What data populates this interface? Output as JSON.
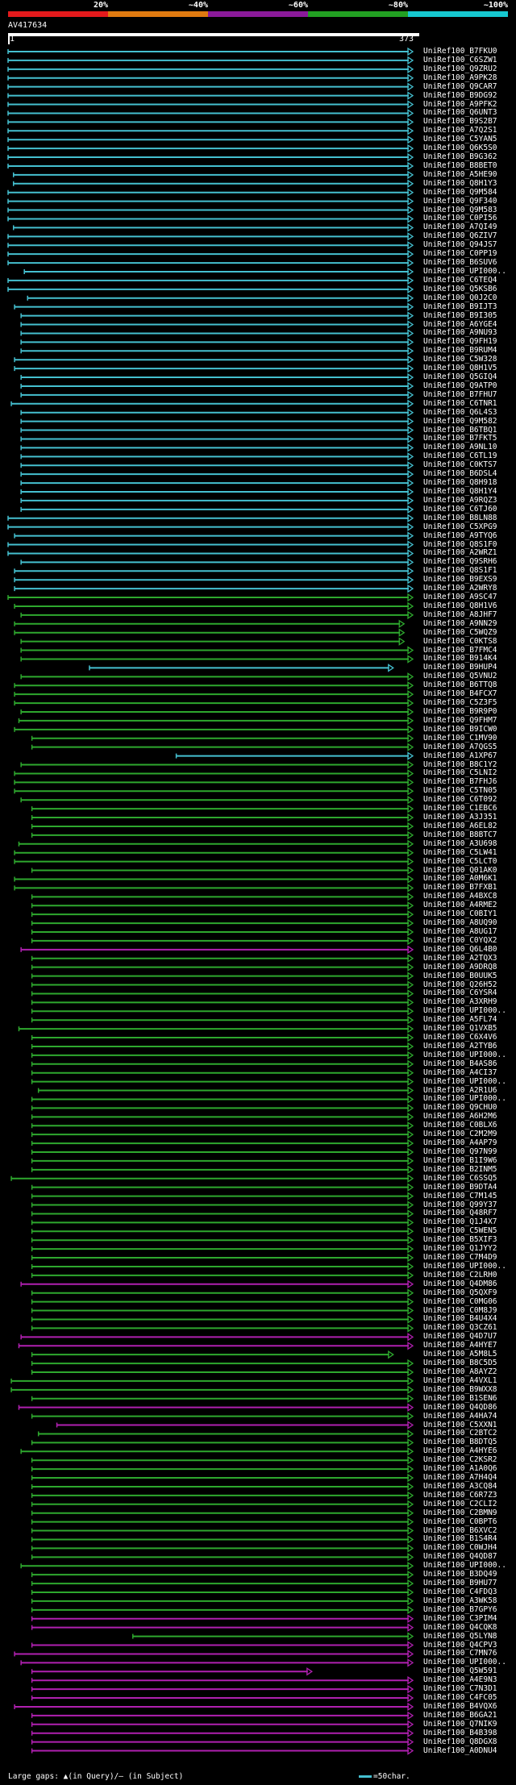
{
  "legend": {
    "labels": [
      "20%",
      "~40%",
      "~60%",
      "~80%",
      "~100%"
    ],
    "colors": [
      "#e41a1c",
      "#e07a10",
      "#8b1a9a",
      "#22a022",
      "#16c8d0"
    ]
  },
  "query": {
    "title": "AV417634",
    "start": "1",
    "end": "373"
  },
  "footer": {
    "text": "Large gaps: ▲(in Query)/— (in Subject)",
    "scale_label": "=50char."
  },
  "hits": [
    {
      "label": "UniRef100_B7FKU0",
      "c": "c",
      "s": 0,
      "e": 373
    },
    {
      "label": "UniRef100_C6SZW1",
      "c": "c",
      "s": 0,
      "e": 373
    },
    {
      "label": "UniRef100_Q9ZRU2",
      "c": "c",
      "s": 0,
      "e": 373
    },
    {
      "label": "UniRef100_A9PK28",
      "c": "c",
      "s": 0,
      "e": 373
    },
    {
      "label": "UniRef100_Q9CAR7",
      "c": "c",
      "s": 0,
      "e": 373
    },
    {
      "label": "UniRef100_B9DG92",
      "c": "c",
      "s": 0,
      "e": 373
    },
    {
      "label": "UniRef100_A9PFK2",
      "c": "c",
      "s": 0,
      "e": 373
    },
    {
      "label": "UniRef100_Q6UNT3",
      "c": "c",
      "s": 0,
      "e": 373
    },
    {
      "label": "UniRef100_B9S2B7",
      "c": "c",
      "s": 0,
      "e": 373
    },
    {
      "label": "UniRef100_A7Q2S1",
      "c": "c",
      "s": 0,
      "e": 373
    },
    {
      "label": "UniRef100_C5YAN5",
      "c": "c",
      "s": 0,
      "e": 373
    },
    {
      "label": "UniRef100_Q6K5S0",
      "c": "c",
      "s": 0,
      "e": 373
    },
    {
      "label": "UniRef100_B9G362",
      "c": "c",
      "s": 0,
      "e": 373
    },
    {
      "label": "UniRef100_B8BET0",
      "c": "c",
      "s": 0,
      "e": 373
    },
    {
      "label": "UniRef100_A5HE90",
      "c": "c",
      "s": 5,
      "e": 373
    },
    {
      "label": "UniRef100_Q8H1Y3",
      "c": "c",
      "s": 5,
      "e": 373
    },
    {
      "label": "UniRef100_Q9M584",
      "c": "c",
      "s": 0,
      "e": 373
    },
    {
      "label": "UniRef100_Q9F340",
      "c": "c",
      "s": 0,
      "e": 373
    },
    {
      "label": "UniRef100_Q9M583",
      "c": "c",
      "s": 0,
      "e": 373
    },
    {
      "label": "UniRef100_C0PI56",
      "c": "c",
      "s": 0,
      "e": 373
    },
    {
      "label": "UniRef100_A7QI49",
      "c": "c",
      "s": 5,
      "e": 373
    },
    {
      "label": "UniRef100_Q6ZIV7",
      "c": "c",
      "s": 0,
      "e": 373
    },
    {
      "label": "UniRef100_Q94JS7",
      "c": "c",
      "s": 0,
      "e": 373
    },
    {
      "label": "UniRef100_C0PP19",
      "c": "c",
      "s": 0,
      "e": 373
    },
    {
      "label": "UniRef100_B6SUV6",
      "c": "c",
      "s": 0,
      "e": 373
    },
    {
      "label": "UniRef100_UPI000..",
      "c": "c",
      "s": 15,
      "e": 373
    },
    {
      "label": "UniRef100_C6TEQ4",
      "c": "c",
      "s": 0,
      "e": 373
    },
    {
      "label": "UniRef100_Q5KSB6",
      "c": "c",
      "s": 0,
      "e": 373
    },
    {
      "label": "UniRef100_Q0J2C0",
      "c": "c",
      "s": 18,
      "e": 373
    },
    {
      "label": "UniRef100_B9IJT3",
      "c": "c",
      "s": 6,
      "e": 373
    },
    {
      "label": "UniRef100_B9I305",
      "c": "c",
      "s": 12,
      "e": 373
    },
    {
      "label": "UniRef100_A6YGE4",
      "c": "c",
      "s": 12,
      "e": 373
    },
    {
      "label": "UniRef100_A9NU93",
      "c": "c",
      "s": 12,
      "e": 373
    },
    {
      "label": "UniRef100_Q9FH19",
      "c": "c",
      "s": 12,
      "e": 373
    },
    {
      "label": "UniRef100_B9RUM4",
      "c": "c",
      "s": 12,
      "e": 373
    },
    {
      "label": "UniRef100_C5W328",
      "c": "c",
      "s": 6,
      "e": 373
    },
    {
      "label": "UniRef100_Q8H1V5",
      "c": "c",
      "s": 6,
      "e": 373
    },
    {
      "label": "UniRef100_Q5GIQ4",
      "c": "c",
      "s": 12,
      "e": 373
    },
    {
      "label": "UniRef100_Q9ATP0",
      "c": "c",
      "s": 12,
      "e": 373
    },
    {
      "label": "UniRef100_B7FHU7",
      "c": "c",
      "s": 12,
      "e": 373
    },
    {
      "label": "UniRef100_C6TNR1",
      "c": "c",
      "s": 3,
      "e": 373
    },
    {
      "label": "UniRef100_Q6L4S3",
      "c": "c",
      "s": 12,
      "e": 373
    },
    {
      "label": "UniRef100_Q9M582",
      "c": "c",
      "s": 12,
      "e": 373
    },
    {
      "label": "UniRef100_B6TBQ1",
      "c": "c",
      "s": 12,
      "e": 373
    },
    {
      "label": "UniRef100_B7FKT5",
      "c": "c",
      "s": 12,
      "e": 373
    },
    {
      "label": "UniRef100_A9NL10",
      "c": "c",
      "s": 12,
      "e": 373
    },
    {
      "label": "UniRef100_C6TL19",
      "c": "c",
      "s": 12,
      "e": 373
    },
    {
      "label": "UniRef100_C0KTS7",
      "c": "c",
      "s": 12,
      "e": 373
    },
    {
      "label": "UniRef100_B6DSL4",
      "c": "c",
      "s": 12,
      "e": 373
    },
    {
      "label": "UniRef100_Q8H918",
      "c": "c",
      "s": 12,
      "e": 373
    },
    {
      "label": "UniRef100_Q8H1Y4",
      "c": "c",
      "s": 12,
      "e": 373
    },
    {
      "label": "UniRef100_A9RQZ3",
      "c": "c",
      "s": 12,
      "e": 373
    },
    {
      "label": "UniRef100_C6TJ60",
      "c": "c",
      "s": 12,
      "e": 373
    },
    {
      "label": "UniRef100_B8LN88",
      "c": "c",
      "s": 0,
      "e": 373
    },
    {
      "label": "UniRef100_C5XPG9",
      "c": "c",
      "s": 0,
      "e": 373
    },
    {
      "label": "UniRef100_A9TYQ6",
      "c": "c",
      "s": 6,
      "e": 373
    },
    {
      "label": "UniRef100_Q8S1F0",
      "c": "c",
      "s": 0,
      "e": 373
    },
    {
      "label": "UniRef100_A2WRZ1",
      "c": "c",
      "s": 0,
      "e": 373
    },
    {
      "label": "UniRef100_Q9SRH6",
      "c": "c",
      "s": 12,
      "e": 373
    },
    {
      "label": "UniRef100_Q8S1F1",
      "c": "c",
      "s": 6,
      "e": 373
    },
    {
      "label": "UniRef100_B9EXS9",
      "c": "c",
      "s": 6,
      "e": 373
    },
    {
      "label": "UniRef100_A2WRY8",
      "c": "c",
      "s": 6,
      "e": 373
    },
    {
      "label": "UniRef100_A9SC47",
      "c": "g",
      "s": 0,
      "e": 373
    },
    {
      "label": "UniRef100_Q8H1V6",
      "c": "g",
      "s": 6,
      "e": 373
    },
    {
      "label": "UniRef100_A8JHF7",
      "c": "g",
      "s": 12,
      "e": 373
    },
    {
      "label": "UniRef100_A9NN29",
      "c": "g",
      "s": 6,
      "e": 365
    },
    {
      "label": "UniRef100_C5WQZ9",
      "c": "g",
      "s": 6,
      "e": 365
    },
    {
      "label": "UniRef100_C0KTS8",
      "c": "g",
      "s": 12,
      "e": 365
    },
    {
      "label": "UniRef100_B7FMC4",
      "c": "g",
      "s": 12,
      "e": 373
    },
    {
      "label": "UniRef100_B914K4",
      "c": "g",
      "s": 12,
      "e": 373
    },
    {
      "label": "UniRef100_B9HUP4",
      "c": "c",
      "s": 75,
      "e": 355
    },
    {
      "label": "UniRef100_Q5VNU2",
      "c": "g",
      "s": 12,
      "e": 373
    },
    {
      "label": "UniRef100_B6TTQ8",
      "c": "g",
      "s": 6,
      "e": 373
    },
    {
      "label": "UniRef100_B4FCX7",
      "c": "g",
      "s": 6,
      "e": 373
    },
    {
      "label": "UniRef100_C5Z3F5",
      "c": "g",
      "s": 6,
      "e": 373
    },
    {
      "label": "UniRef100_B9R9P0",
      "c": "g",
      "s": 12,
      "e": 373
    },
    {
      "label": "UniRef100_Q9FHM7",
      "c": "g",
      "s": 10,
      "e": 373
    },
    {
      "label": "UniRef100_B9ICW0",
      "c": "g",
      "s": 6,
      "e": 373
    },
    {
      "label": "UniRef100_C1MV90",
      "c": "g",
      "s": 22,
      "e": 373
    },
    {
      "label": "UniRef100_A7QGS5",
      "c": "g",
      "s": 22,
      "e": 373
    },
    {
      "label": "UniRef100_A1XP67",
      "c": "c",
      "s": 155,
      "e": 373
    },
    {
      "label": "UniRef100_B8C1Y2",
      "c": "g",
      "s": 12,
      "e": 373
    },
    {
      "label": "UniRef100_C5LNI2",
      "c": "g",
      "s": 6,
      "e": 373
    },
    {
      "label": "UniRef100_B7FHJ6",
      "c": "g",
      "s": 6,
      "e": 373
    },
    {
      "label": "UniRef100_C5TN05",
      "c": "g",
      "s": 6,
      "e": 373
    },
    {
      "label": "UniRef100_C6T092",
      "c": "g",
      "s": 12,
      "e": 373
    },
    {
      "label": "UniRef100_C1EBC6",
      "c": "g",
      "s": 22,
      "e": 373
    },
    {
      "label": "UniRef100_A3J351",
      "c": "g",
      "s": 22,
      "e": 373
    },
    {
      "label": "UniRef100_A6EL82",
      "c": "g",
      "s": 22,
      "e": 373
    },
    {
      "label": "UniRef100_B8BTC7",
      "c": "g",
      "s": 22,
      "e": 373
    },
    {
      "label": "UniRef100_A3U698",
      "c": "g",
      "s": 10,
      "e": 373
    },
    {
      "label": "UniRef100_C5LW41",
      "c": "g",
      "s": 6,
      "e": 373
    },
    {
      "label": "UniRef100_C5LCT0",
      "c": "g",
      "s": 6,
      "e": 373
    },
    {
      "label": "UniRef100_Q01AK0",
      "c": "g",
      "s": 22,
      "e": 373
    },
    {
      "label": "UniRef100_A0M6K1",
      "c": "g",
      "s": 6,
      "e": 373
    },
    {
      "label": "UniRef100_B7FXB1",
      "c": "g",
      "s": 6,
      "e": 373
    },
    {
      "label": "UniRef100_A4BXC8",
      "c": "g",
      "s": 22,
      "e": 373
    },
    {
      "label": "UniRef100_A4RME2",
      "c": "g",
      "s": 22,
      "e": 373
    },
    {
      "label": "UniRef100_C0BIY1",
      "c": "g",
      "s": 22,
      "e": 373
    },
    {
      "label": "UniRef100_A8UQ90",
      "c": "g",
      "s": 22,
      "e": 373
    },
    {
      "label": "UniRef100_A8UG17",
      "c": "g",
      "s": 22,
      "e": 373
    },
    {
      "label": "UniRef100_C0YQX2",
      "c": "g",
      "s": 22,
      "e": 373
    },
    {
      "label": "UniRef100_Q6L4B0",
      "c": "m",
      "s": 12,
      "e": 373
    },
    {
      "label": "UniRef100_A2TQX3",
      "c": "g",
      "s": 22,
      "e": 373
    },
    {
      "label": "UniRef100_A9DRQ8",
      "c": "g",
      "s": 22,
      "e": 373
    },
    {
      "label": "UniRef100_B0UUK5",
      "c": "g",
      "s": 22,
      "e": 373
    },
    {
      "label": "UniRef100_Q26H52",
      "c": "g",
      "s": 22,
      "e": 373
    },
    {
      "label": "UniRef100_C6YSR4",
      "c": "g",
      "s": 22,
      "e": 373
    },
    {
      "label": "UniRef100_A3XRH9",
      "c": "g",
      "s": 22,
      "e": 373
    },
    {
      "label": "UniRef100_UPI000..",
      "c": "g",
      "s": 22,
      "e": 373
    },
    {
      "label": "UniRef100_A5FL74",
      "c": "g",
      "s": 22,
      "e": 373
    },
    {
      "label": "UniRef100_Q1VXB5",
      "c": "g",
      "s": 10,
      "e": 373
    },
    {
      "label": "UniRef100_C6X4V6",
      "c": "g",
      "s": 22,
      "e": 373
    },
    {
      "label": "UniRef100_A2TYB6",
      "c": "g",
      "s": 22,
      "e": 373
    },
    {
      "label": "UniRef100_UPI000..",
      "c": "g",
      "s": 22,
      "e": 373
    },
    {
      "label": "UniRef100_B4AS86",
      "c": "g",
      "s": 22,
      "e": 373
    },
    {
      "label": "UniRef100_A4CI37",
      "c": "g",
      "s": 22,
      "e": 373
    },
    {
      "label": "UniRef100_UPI000..",
      "c": "g",
      "s": 22,
      "e": 373
    },
    {
      "label": "UniRef100_A2R1U6",
      "c": "g",
      "s": 28,
      "e": 373
    },
    {
      "label": "UniRef100_UPI000..",
      "c": "g",
      "s": 22,
      "e": 373
    },
    {
      "label": "UniRef100_Q9CHU0",
      "c": "g",
      "s": 22,
      "e": 373
    },
    {
      "label": "UniRef100_A6H2M6",
      "c": "g",
      "s": 22,
      "e": 373
    },
    {
      "label": "UniRef100_C0BLX6",
      "c": "g",
      "s": 22,
      "e": 373
    },
    {
      "label": "UniRef100_C2M2M9",
      "c": "g",
      "s": 22,
      "e": 373
    },
    {
      "label": "UniRef100_A4AP79",
      "c": "g",
      "s": 22,
      "e": 373
    },
    {
      "label": "UniRef100_Q97N99",
      "c": "g",
      "s": 22,
      "e": 373
    },
    {
      "label": "UniRef100_B1I9W6",
      "c": "g",
      "s": 22,
      "e": 373
    },
    {
      "label": "UniRef100_B2INM5",
      "c": "g",
      "s": 22,
      "e": 373
    },
    {
      "label": "UniRef100_C6SSQ5",
      "c": "g",
      "s": 3,
      "e": 373
    },
    {
      "label": "UniRef100_B9DTA4",
      "c": "g",
      "s": 22,
      "e": 373
    },
    {
      "label": "UniRef100_C7M145",
      "c": "g",
      "s": 22,
      "e": 373
    },
    {
      "label": "UniRef100_Q99Y37",
      "c": "g",
      "s": 22,
      "e": 373
    },
    {
      "label": "UniRef100_Q48RF7",
      "c": "g",
      "s": 22,
      "e": 373
    },
    {
      "label": "UniRef100_Q1J4X7",
      "c": "g",
      "s": 22,
      "e": 373
    },
    {
      "label": "UniRef100_C5WEN5",
      "c": "g",
      "s": 22,
      "e": 373
    },
    {
      "label": "UniRef100_B5XIF3",
      "c": "g",
      "s": 22,
      "e": 373
    },
    {
      "label": "UniRef100_Q1JYY2",
      "c": "g",
      "s": 22,
      "e": 373
    },
    {
      "label": "UniRef100_C7M4D9",
      "c": "g",
      "s": 22,
      "e": 373
    },
    {
      "label": "UniRef100_UPI000..",
      "c": "g",
      "s": 22,
      "e": 373
    },
    {
      "label": "UniRef100_C2LRH0",
      "c": "g",
      "s": 22,
      "e": 373
    },
    {
      "label": "UniRef100_Q4DM86",
      "c": "m",
      "s": 12,
      "e": 373
    },
    {
      "label": "UniRef100_Q5QXF9",
      "c": "g",
      "s": 22,
      "e": 373
    },
    {
      "label": "UniRef100_C0MG06",
      "c": "g",
      "s": 22,
      "e": 373
    },
    {
      "label": "UniRef100_C0M8J9",
      "c": "g",
      "s": 22,
      "e": 373
    },
    {
      "label": "UniRef100_B4U4X4",
      "c": "g",
      "s": 22,
      "e": 373
    },
    {
      "label": "UniRef100_Q3CZ61",
      "c": "g",
      "s": 22,
      "e": 373
    },
    {
      "label": "UniRef100_Q4D7U7",
      "c": "m",
      "s": 12,
      "e": 373
    },
    {
      "label": "UniRef100_A4HYE7",
      "c": "m",
      "s": 10,
      "e": 373
    },
    {
      "label": "UniRef100_A5M8L5",
      "c": "g",
      "s": 22,
      "e": 355
    },
    {
      "label": "UniRef100_B8C5D5",
      "c": "g",
      "s": 22,
      "e": 373
    },
    {
      "label": "UniRef100_A8AYZ2",
      "c": "g",
      "s": 22,
      "e": 373
    },
    {
      "label": "UniRef100_A4VXL1",
      "c": "g",
      "s": 3,
      "e": 373
    },
    {
      "label": "UniRef100_B9WXX8",
      "c": "g",
      "s": 3,
      "e": 373
    },
    {
      "label": "UniRef100_B1SEN6",
      "c": "g",
      "s": 22,
      "e": 373
    },
    {
      "label": "UniRef100_Q4QD86",
      "c": "m",
      "s": 10,
      "e": 373
    },
    {
      "label": "UniRef100_A4HA74",
      "c": "g",
      "s": 22,
      "e": 373
    },
    {
      "label": "UniRef100_C5XXN1",
      "c": "m",
      "s": 45,
      "e": 373
    },
    {
      "label": "UniRef100_C2BTC2",
      "c": "g",
      "s": 28,
      "e": 373
    },
    {
      "label": "UniRef100_B8DTQ5",
      "c": "g",
      "s": 22,
      "e": 373
    },
    {
      "label": "UniRef100_A4HYE6",
      "c": "g",
      "s": 12,
      "e": 373
    },
    {
      "label": "UniRef100_C2KSR2",
      "c": "g",
      "s": 22,
      "e": 373
    },
    {
      "label": "UniRef100_A1A0Q6",
      "c": "g",
      "s": 22,
      "e": 373
    },
    {
      "label": "UniRef100_A7H4Q4",
      "c": "g",
      "s": 22,
      "e": 373
    },
    {
      "label": "UniRef100_A3CQ84",
      "c": "g",
      "s": 22,
      "e": 373
    },
    {
      "label": "UniRef100_C6R7Z3",
      "c": "g",
      "s": 22,
      "e": 373
    },
    {
      "label": "UniRef100_C2CLI2",
      "c": "g",
      "s": 22,
      "e": 373
    },
    {
      "label": "UniRef100_C2BMN9",
      "c": "g",
      "s": 22,
      "e": 373
    },
    {
      "label": "UniRef100_C0BPT6",
      "c": "g",
      "s": 22,
      "e": 373
    },
    {
      "label": "UniRef100_B6XVC2",
      "c": "g",
      "s": 22,
      "e": 373
    },
    {
      "label": "UniRef100_B1S4R4",
      "c": "g",
      "s": 22,
      "e": 373
    },
    {
      "label": "UniRef100_C0WJH4",
      "c": "g",
      "s": 22,
      "e": 373
    },
    {
      "label": "UniRef100_Q4QD87",
      "c": "g",
      "s": 22,
      "e": 373
    },
    {
      "label": "UniRef100_UPI000..",
      "c": "g",
      "s": 12,
      "e": 373
    },
    {
      "label": "UniRef100_B3DQ49",
      "c": "g",
      "s": 22,
      "e": 373
    },
    {
      "label": "UniRef100_B9HU77",
      "c": "g",
      "s": 22,
      "e": 373
    },
    {
      "label": "UniRef100_C4FDQ3",
      "c": "g",
      "s": 22,
      "e": 373
    },
    {
      "label": "UniRef100_A3WK58",
      "c": "g",
      "s": 22,
      "e": 373
    },
    {
      "label": "UniRef100_B7GPY6",
      "c": "g",
      "s": 22,
      "e": 373
    },
    {
      "label": "UniRef100_C3PIM4",
      "c": "m",
      "s": 22,
      "e": 373
    },
    {
      "label": "UniRef100_Q4CQK8",
      "c": "m",
      "s": 22,
      "e": 373
    },
    {
      "label": "UniRef100_Q5LYN8",
      "c": "g",
      "s": 115,
      "e": 373
    },
    {
      "label": "UniRef100_Q4CPV3",
      "c": "m",
      "s": 22,
      "e": 373
    },
    {
      "label": "UniRef100_C7MN76",
      "c": "m",
      "s": 6,
      "e": 373
    },
    {
      "label": "UniRef100_UPI000..",
      "c": "m",
      "s": 12,
      "e": 373
    },
    {
      "label": "UniRef100_Q5W591",
      "c": "m",
      "s": 22,
      "e": 280
    },
    {
      "label": "UniRef100_A4E9N3",
      "c": "m",
      "s": 22,
      "e": 373
    },
    {
      "label": "UniRef100_C7N3D1",
      "c": "m",
      "s": 22,
      "e": 373
    },
    {
      "label": "UniRef100_C4FC05",
      "c": "m",
      "s": 22,
      "e": 373
    },
    {
      "label": "UniRef100_B4VQX6",
      "c": "m",
      "s": 6,
      "e": 373
    },
    {
      "label": "UniRef100_B6GA21",
      "c": "m",
      "s": 22,
      "e": 373
    },
    {
      "label": "UniRef100_Q7NIK9",
      "c": "m",
      "s": 22,
      "e": 373
    },
    {
      "label": "UniRef100_B4B398",
      "c": "m",
      "s": 22,
      "e": 373
    },
    {
      "label": "UniRef100_Q8DGX8",
      "c": "m",
      "s": 22,
      "e": 373
    },
    {
      "label": "UniRef100_A0DNU4",
      "c": "m",
      "s": 22,
      "e": 373
    }
  ],
  "hit_colors": {
    "c": "#45c0d0",
    "g": "#2ea82e",
    "m": "#b020b0"
  }
}
